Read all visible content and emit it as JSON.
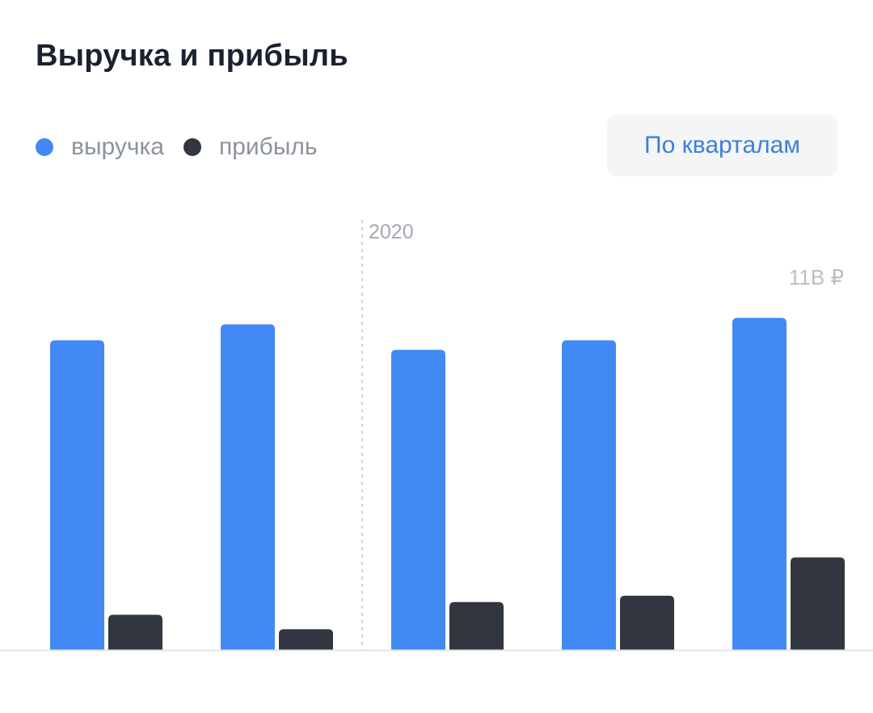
{
  "header": {
    "title": "Выручка и прибыль"
  },
  "legend": {
    "items": [
      {
        "label": "выручка",
        "color": "#4289f6"
      },
      {
        "label": "прибыль",
        "color": "#313640"
      }
    ]
  },
  "controls": {
    "period_label": "По кварталам"
  },
  "chart_data": {
    "type": "bar",
    "categories": [
      "",
      "",
      "",
      "",
      ""
    ],
    "series": [
      {
        "name": "выручка",
        "color": "#4289f6",
        "values": [
          9.7,
          10.2,
          9.4,
          9.7,
          10.4
        ]
      },
      {
        "name": "прибыль",
        "color": "#313640",
        "values": [
          1.1,
          0.65,
          1.5,
          1.7,
          2.9
        ]
      }
    ],
    "ylim": [
      0,
      11.75
    ],
    "max_value_label": "11B ₽",
    "year_marker": {
      "label": "2020",
      "between_categories": [
        1,
        2
      ]
    },
    "grid": false,
    "legend_position": "top-left"
  }
}
